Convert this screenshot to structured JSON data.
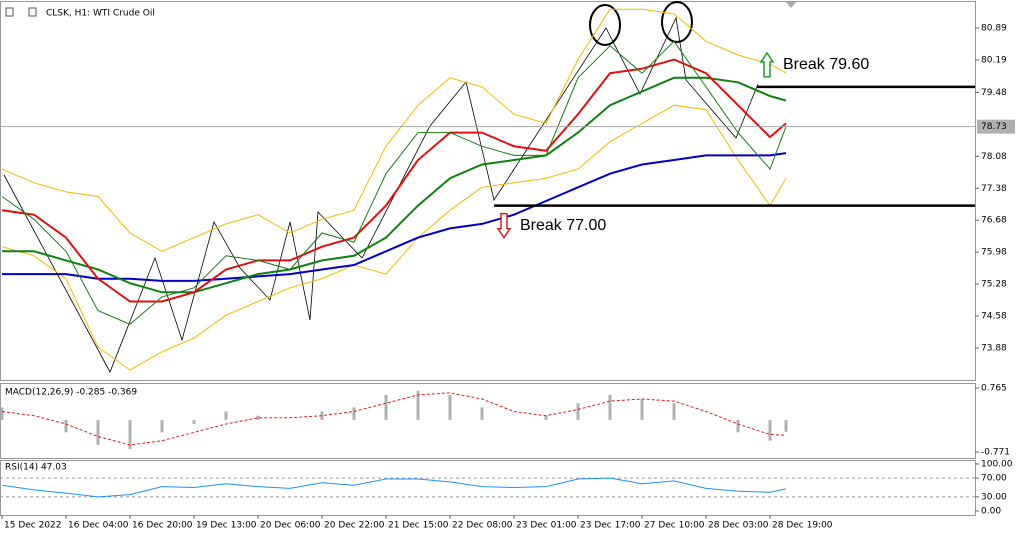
{
  "chart_data": [
    {
      "type": "line",
      "title": "CLSK, H1:  WTI Crude Oil",
      "x": [
        0,
        8,
        16,
        24,
        32,
        40,
        48,
        56,
        64,
        72,
        80,
        88,
        96,
        104,
        112,
        120,
        128,
        136,
        144,
        152,
        160,
        168,
        176,
        184,
        192,
        196
      ],
      "xlim": [
        -0.5,
        243.25
      ],
      "ylim": [
        73.18,
        81.46
      ],
      "yticks": [
        80.89,
        80.19,
        79.48,
        78.08,
        77.38,
        76.68,
        75.98,
        75.28,
        74.58,
        73.88
      ],
      "current_price": 78.73,
      "series": [
        {
          "color": "#f5b800",
          "width": 1,
          "values": [
            77.8,
            77.5,
            77.3,
            77.2,
            76.4,
            76.0,
            76.3,
            76.6,
            76.8,
            76.4,
            76.7,
            76.9,
            78.3,
            79.2,
            79.8,
            79.6,
            79.0,
            78.8,
            80.2,
            81.3,
            81.3,
            81.2,
            80.6,
            80.3,
            80.1,
            79.9
          ]
        },
        {
          "color": "#f5b800",
          "width": 1,
          "values": [
            76.1,
            75.9,
            75.4,
            73.9,
            73.4,
            73.8,
            74.1,
            74.6,
            74.9,
            75.2,
            75.4,
            75.7,
            75.5,
            76.3,
            76.9,
            77.4,
            77.5,
            77.6,
            77.8,
            78.4,
            78.8,
            79.2,
            79.1,
            78.0,
            77.0,
            77.6
          ]
        },
        {
          "color": "#0000c8",
          "width": 2,
          "values": [
            75.5,
            75.5,
            75.5,
            75.4,
            75.4,
            75.35,
            75.35,
            75.4,
            75.45,
            75.5,
            75.6,
            75.7,
            76.0,
            76.3,
            76.5,
            76.6,
            76.8,
            77.1,
            77.4,
            77.7,
            77.9,
            78.0,
            78.1,
            78.1,
            78.1,
            78.15
          ]
        },
        {
          "color": "#108010",
          "width": 2,
          "values": [
            76.0,
            76.0,
            75.8,
            75.6,
            75.3,
            75.1,
            75.1,
            75.3,
            75.5,
            75.6,
            75.8,
            75.9,
            76.3,
            77.0,
            77.6,
            77.9,
            78.0,
            78.1,
            78.6,
            79.2,
            79.5,
            79.8,
            79.8,
            79.7,
            79.4,
            79.3
          ]
        },
        {
          "color": "#e01010",
          "width": 2,
          "values": [
            76.9,
            76.8,
            76.3,
            75.4,
            74.9,
            74.9,
            75.1,
            75.6,
            75.8,
            75.8,
            76.1,
            76.3,
            77.0,
            78.0,
            78.6,
            78.6,
            78.3,
            78.2,
            79.0,
            79.9,
            80.0,
            80.2,
            79.9,
            79.2,
            78.5,
            78.8
          ]
        },
        {
          "color": "#1a7a1a",
          "width": 1,
          "values": [
            77.2,
            76.7,
            76.0,
            74.7,
            74.4,
            75.0,
            75.2,
            75.9,
            75.8,
            75.6,
            76.4,
            76.2,
            77.7,
            78.6,
            78.6,
            78.3,
            78.1,
            78.1,
            79.8,
            80.5,
            79.9,
            80.6,
            79.6,
            78.6,
            77.8,
            78.73
          ]
        }
      ],
      "levels": [
        {
          "value": 79.6,
          "from": 188.75,
          "label": "Break 79.60",
          "color": "#22a02a",
          "dir": "up"
        },
        {
          "value": 77.0,
          "from": 123,
          "label": "Break 77.00",
          "color": "#d02020",
          "dir": "down"
        }
      ]
    },
    {
      "type": "macd",
      "title": "MACD(12,26,9) -0.285 -0.369",
      "xlim": [
        -0.5,
        243.25
      ],
      "ylim": [
        -0.915,
        0.861
      ],
      "yticks": [
        0.765,
        -0.771
      ],
      "x": [
        0,
        8,
        16,
        24,
        32,
        40,
        48,
        56,
        64,
        72,
        80,
        88,
        96,
        104,
        112,
        120,
        128,
        136,
        144,
        152,
        160,
        168,
        176,
        184,
        192,
        196
      ],
      "series": [
        {
          "style": "histogram",
          "color": "#b0b0b0",
          "values": [
            0.3,
            0.0,
            -0.3,
            -0.6,
            -0.7,
            -0.3,
            -0.1,
            0.2,
            0.1,
            0.0,
            0.2,
            0.3,
            0.6,
            0.7,
            0.6,
            0.3,
            0.0,
            0.1,
            0.4,
            0.6,
            0.5,
            0.4,
            0.0,
            -0.3,
            -0.5,
            -0.285
          ]
        },
        {
          "style": "dashed",
          "color": "#e02020",
          "values": [
            0.2,
            0.1,
            -0.1,
            -0.4,
            -0.6,
            -0.5,
            -0.3,
            -0.1,
            0.05,
            0.05,
            0.1,
            0.2,
            0.4,
            0.6,
            0.65,
            0.5,
            0.2,
            0.1,
            0.25,
            0.45,
            0.5,
            0.45,
            0.2,
            -0.1,
            -0.35,
            -0.369
          ]
        }
      ]
    },
    {
      "type": "rsi",
      "title": "RSI(14) 47.03",
      "xlim": [
        -0.5,
        243.25
      ],
      "ylim": [
        -8.5,
        106.4
      ],
      "yticks": [
        {
          "value": 100,
          "label": "100.00"
        },
        {
          "value": 70,
          "label": "70.00"
        },
        {
          "value": 30,
          "label": "30.00"
        },
        {
          "value": 0,
          "label": "0.00"
        }
      ],
      "levels": [
        70,
        30
      ],
      "x": [
        0,
        8,
        16,
        24,
        32,
        40,
        48,
        56,
        64,
        72,
        80,
        88,
        96,
        104,
        112,
        120,
        128,
        136,
        144,
        152,
        160,
        168,
        176,
        184,
        192,
        196
      ],
      "series": [
        {
          "color": "#1e90ff",
          "values": [
            55,
            45,
            38,
            30,
            35,
            52,
            50,
            58,
            52,
            48,
            60,
            55,
            68,
            68,
            62,
            52,
            50,
            52,
            68,
            70,
            58,
            64,
            48,
            42,
            40,
            47.03
          ]
        }
      ],
      "xticks": [
        {
          "value": 0,
          "label": "15 Dec 2022"
        },
        {
          "value": 16,
          "label": "16 Dec 04:00"
        },
        {
          "value": 32,
          "label": "16 Dec 20:00"
        },
        {
          "value": 48,
          "label": "19 Dec 13:00"
        },
        {
          "value": 64,
          "label": "20 Dec 06:00"
        },
        {
          "value": 80,
          "label": "20 Dec 22:00"
        },
        {
          "value": 96,
          "label": "21 Dec 15:00"
        },
        {
          "value": 112,
          "label": "22 Dec 08:00"
        },
        {
          "value": 128,
          "label": "23 Dec 01:00"
        },
        {
          "value": 144,
          "label": "23 Dec 17:00"
        },
        {
          "value": 160,
          "label": "27 Dec 10:00"
        },
        {
          "value": 176,
          "label": "28 Dec 03:00"
        },
        {
          "value": 192,
          "label": "28 Dec 19:00"
        }
      ]
    }
  ]
}
